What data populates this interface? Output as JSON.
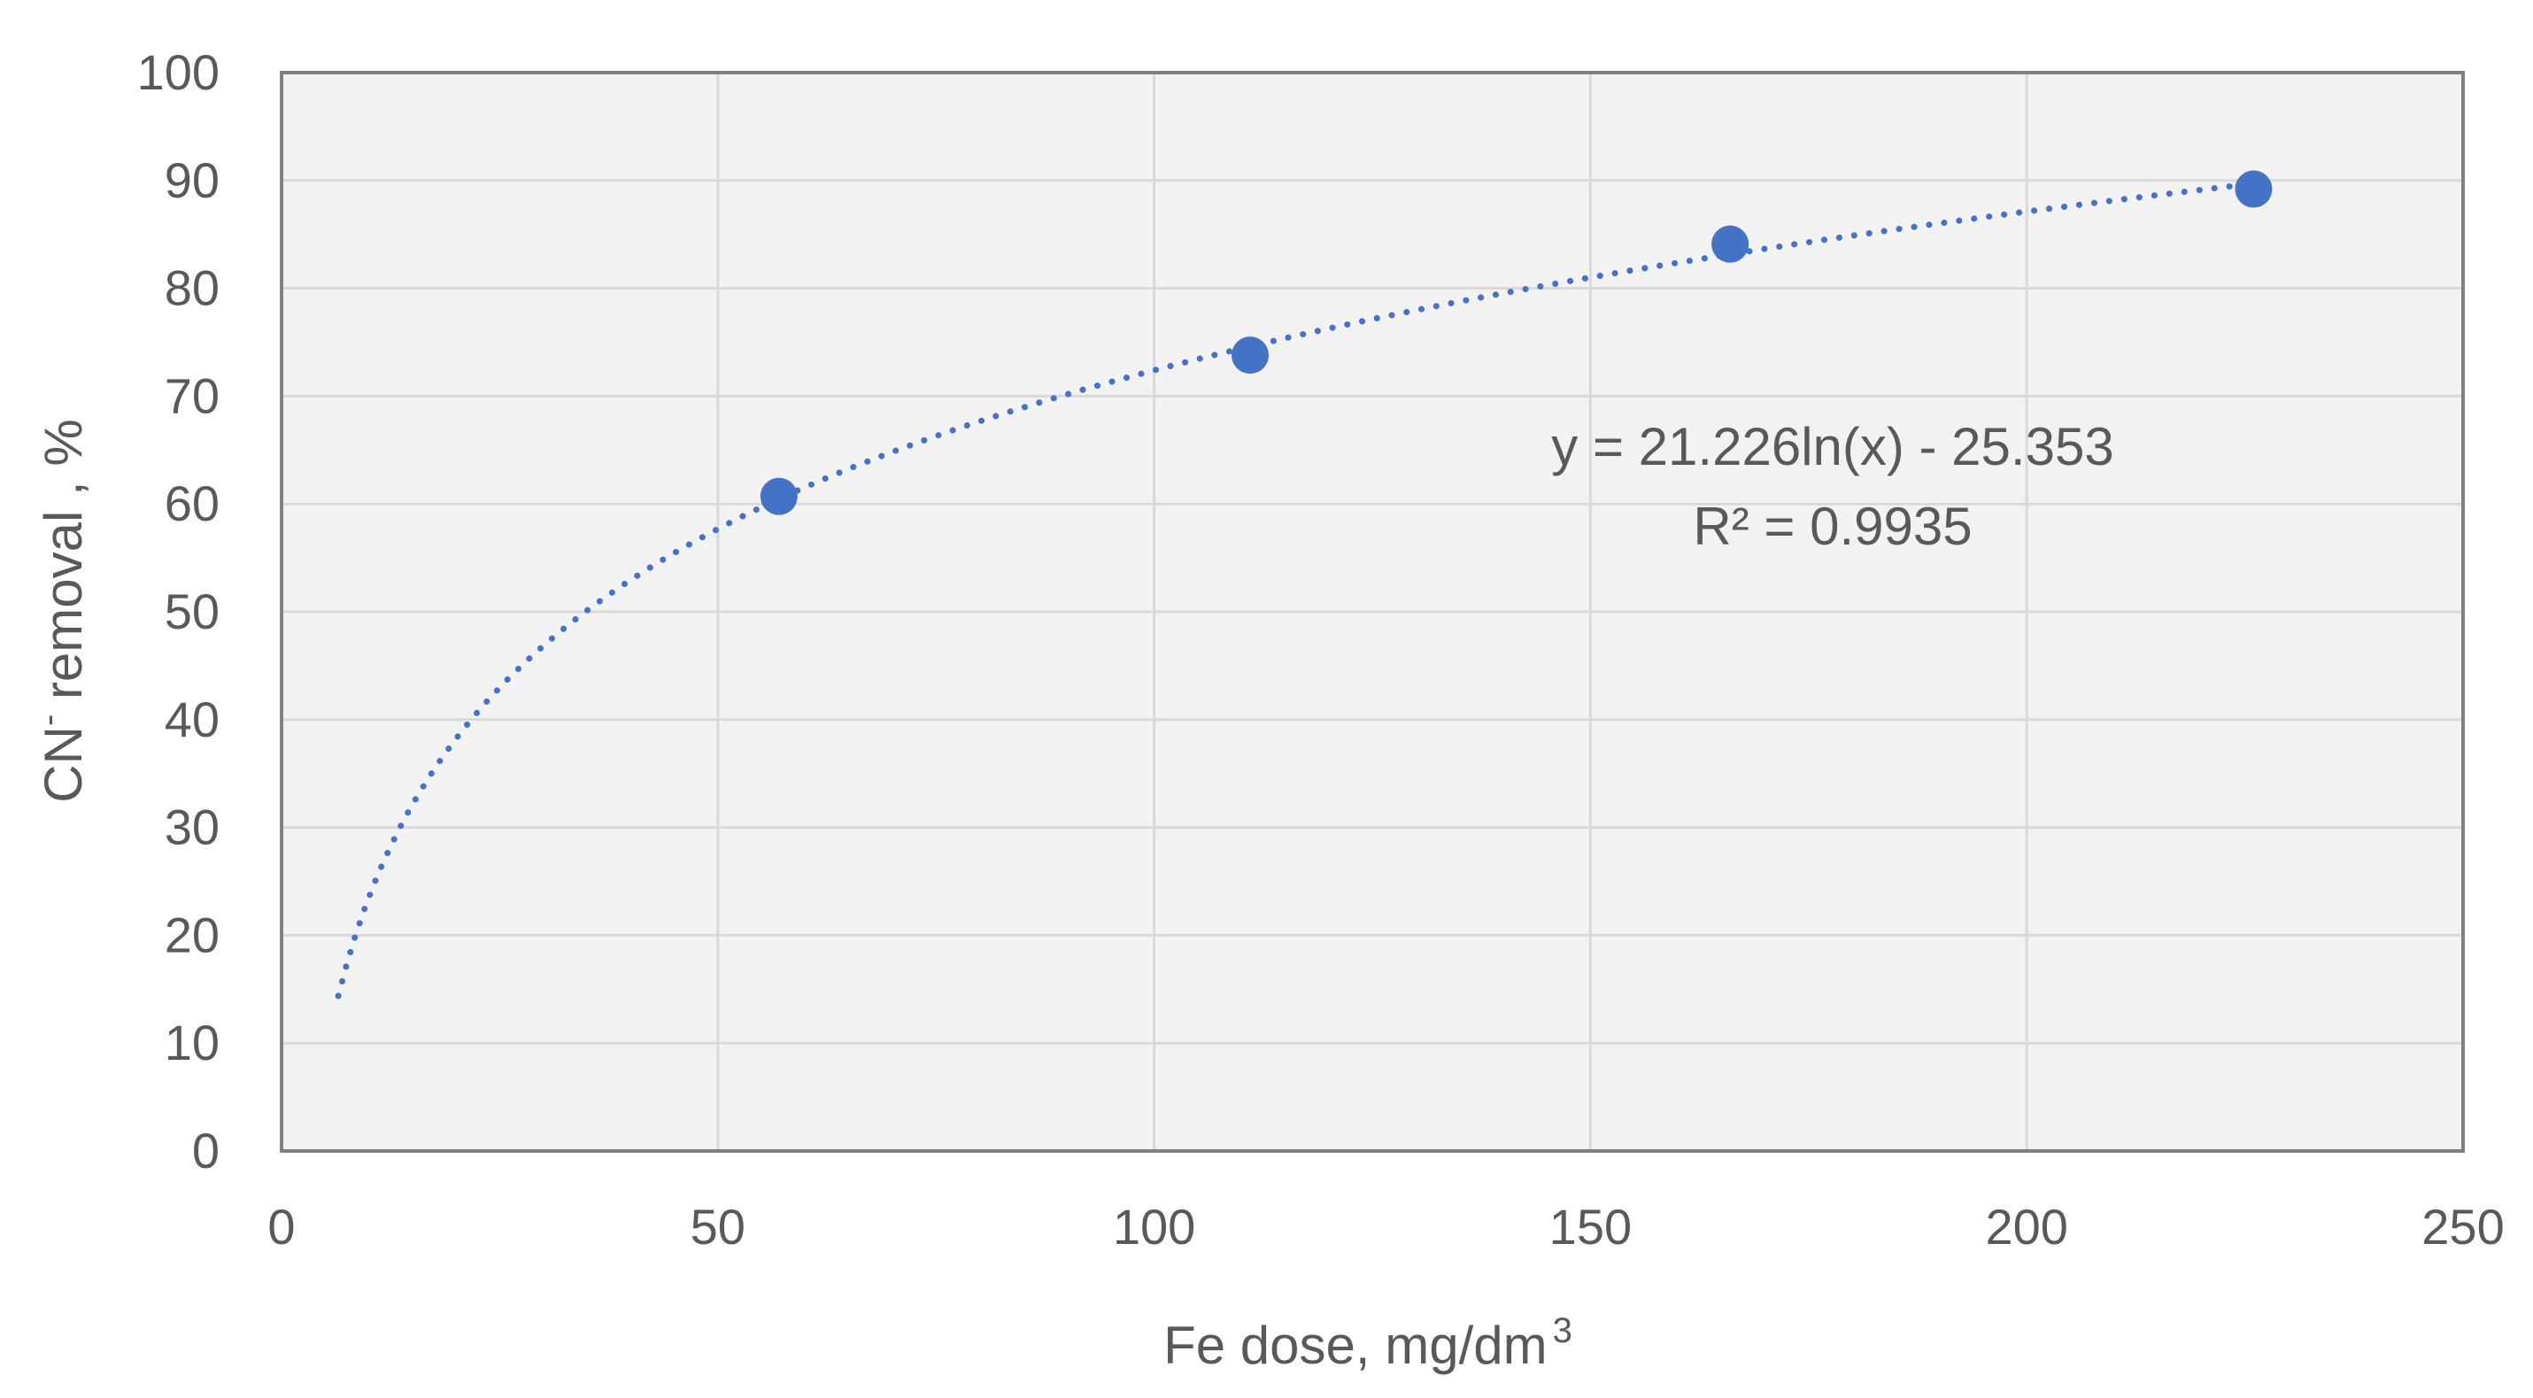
{
  "chart_data": {
    "type": "scatter",
    "xlabel": "Fe dose, mg/dm",
    "xlabel_sup": "3",
    "ylabel": "CN",
    "ylabel_sup": "-",
    "ylabel_rest": " removal , %",
    "xlim": [
      0,
      250
    ],
    "ylim": [
      0,
      100
    ],
    "xticks": [
      "0",
      "50",
      "100",
      "150",
      "200",
      "250"
    ],
    "yticks": [
      "0",
      "10",
      "20",
      "30",
      "40",
      "50",
      "60",
      "70",
      "80",
      "90",
      "100"
    ],
    "grid": true,
    "legend": "none",
    "series": [
      {
        "x": [
          57,
          111,
          166,
          226
        ],
        "y": [
          60.7,
          73.8,
          84.1,
          89.2
        ],
        "color": "#4472C4",
        "marker": "circle"
      }
    ],
    "trendline": {
      "type": "logarithmic",
      "style": "dotted",
      "color": "#4472C4",
      "coef_a": 21.226,
      "coef_b": -25.353,
      "x_range": [
        6.5,
        226
      ],
      "equation": "y = 21.226ln(x) - 25.353",
      "r_squared_label": "R² = 0.9935"
    },
    "colors": {
      "plot_background": "#F2F2F2",
      "gridline": "#D9D9D9",
      "border": "#808080",
      "text": "#595959"
    }
  }
}
